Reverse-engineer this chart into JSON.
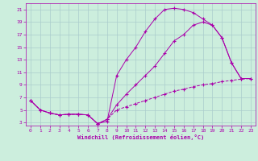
{
  "xlabel": "Windchill (Refroidissement éolien,°C)",
  "bg_color": "#cceedd",
  "grid_color": "#aacccc",
  "line_color": "#aa00aa",
  "xlim": [
    -0.5,
    23.5
  ],
  "ylim": [
    2.5,
    22
  ],
  "xticks": [
    0,
    1,
    2,
    3,
    4,
    5,
    6,
    7,
    8,
    9,
    10,
    11,
    12,
    13,
    14,
    15,
    16,
    17,
    18,
    19,
    20,
    21,
    22,
    23
  ],
  "yticks": [
    3,
    5,
    7,
    9,
    11,
    13,
    15,
    17,
    19,
    21
  ],
  "curve1_x": [
    0,
    1,
    2,
    3,
    4,
    5,
    6,
    7,
    8,
    9,
    10,
    11,
    12,
    13,
    14,
    15,
    16,
    17,
    18,
    19,
    20,
    21,
    22
  ],
  "curve1_y": [
    6.5,
    5.0,
    4.5,
    4.2,
    4.3,
    4.3,
    4.2,
    2.8,
    3.2,
    10.5,
    13.0,
    15.0,
    17.5,
    19.5,
    21.0,
    21.2,
    21.0,
    20.5,
    19.5,
    18.5,
    16.5,
    12.5,
    10.0
  ],
  "curve2_x": [
    0,
    1,
    2,
    3,
    4,
    5,
    6,
    7,
    8,
    9,
    10,
    11,
    12,
    13,
    14,
    15,
    16,
    17,
    18,
    19,
    20,
    21,
    22,
    23
  ],
  "curve2_y": [
    6.5,
    5.0,
    4.5,
    4.2,
    4.3,
    4.3,
    4.2,
    2.8,
    3.5,
    5.8,
    7.5,
    9.0,
    10.5,
    12.0,
    14.0,
    16.0,
    17.0,
    18.5,
    19.0,
    18.5,
    16.5,
    12.5,
    10.0,
    10.0
  ],
  "curve3_x": [
    0,
    1,
    2,
    3,
    4,
    5,
    6,
    7,
    8,
    9,
    10,
    11,
    12,
    13,
    14,
    15,
    16,
    17,
    18,
    19,
    20,
    21,
    22,
    23
  ],
  "curve3_y": [
    6.5,
    5.0,
    4.5,
    4.2,
    4.3,
    4.3,
    4.2,
    2.8,
    3.5,
    5.0,
    5.5,
    6.0,
    6.5,
    7.0,
    7.5,
    8.0,
    8.3,
    8.7,
    9.0,
    9.2,
    9.5,
    9.7,
    9.9,
    10.0
  ]
}
